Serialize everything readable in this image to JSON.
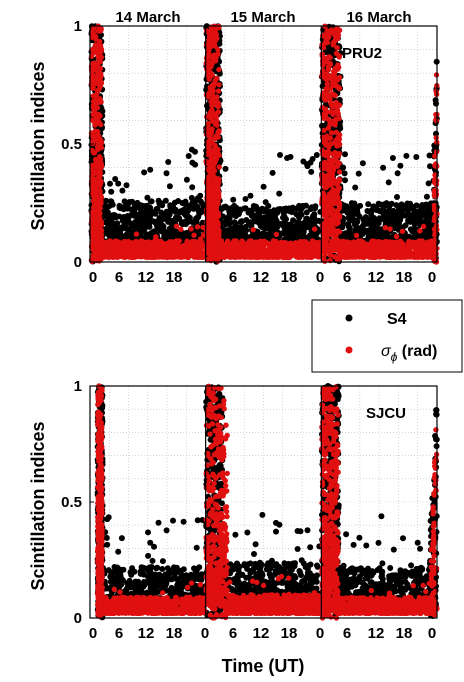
{
  "chart_data": [
    {
      "type": "scatter",
      "panel": "PRU2",
      "station_label": "PRU2",
      "ylabel": "Scintillation indices",
      "ylim": [
        0,
        1
      ],
      "yticks": [
        "0",
        "0.5",
        "1"
      ],
      "day_titles": [
        "14 March",
        "15 March",
        "16 March"
      ],
      "xticks": [
        "0",
        "6",
        "12",
        "18",
        "0",
        "6",
        "12",
        "18",
        "0",
        "6",
        "12",
        "18",
        "0"
      ],
      "xlim_hours": [
        0,
        72
      ],
      "grid": true,
      "series": [
        {
          "name": "S4",
          "color": "#000000",
          "pattern": [
            {
              "day": 0,
              "burst_start_h": 0.3,
              "burst_end_h": 2.6,
              "burst_peak": 1.0,
              "background": [
                0.08,
                0.26
              ]
            },
            {
              "day": 1,
              "burst_start_h": 0.1,
              "burst_end_h": 3.0,
              "burst_peak": 1.0,
              "background": [
                0.08,
                0.24
              ]
            },
            {
              "day": 2,
              "burst_start_h": 0.1,
              "burst_end_h": 4.0,
              "burst_peak": 1.0,
              "background": [
                0.08,
                0.25
              ]
            },
            {
              "day": 2,
              "late_rise_h": 23.2,
              "late_peak": 1.0
            }
          ]
        },
        {
          "name": "σϕ (rad)",
          "color": "#e01010",
          "pattern": [
            {
              "day": 0,
              "burst_start_h": 0.3,
              "burst_end_h": 2.4,
              "burst_peak": 1.0,
              "background": [
                0.02,
                0.09
              ]
            },
            {
              "day": 1,
              "burst_start_h": 0.1,
              "burst_end_h": 2.8,
              "burst_peak": 1.0,
              "background": [
                0.02,
                0.09
              ]
            },
            {
              "day": 2,
              "burst_start_h": 0.1,
              "burst_end_h": 3.8,
              "burst_peak": 1.0,
              "background": [
                0.02,
                0.09
              ]
            },
            {
              "day": 2,
              "late_rise_h": 23.4,
              "late_peak": 0.95
            }
          ]
        }
      ]
    },
    {
      "type": "scatter",
      "panel": "SJCU",
      "station_label": "SJCU",
      "ylabel": "Scintillation indices",
      "xlabel": "Time (UT)",
      "ylim": [
        0,
        1
      ],
      "yticks": [
        "0",
        "0.5",
        "1"
      ],
      "xticks": [
        "0",
        "6",
        "12",
        "18",
        "0",
        "6",
        "12",
        "18",
        "0",
        "6",
        "12",
        "18",
        "0"
      ],
      "xlim_hours": [
        0,
        72
      ],
      "grid": true,
      "series": [
        {
          "name": "S4",
          "color": "#000000",
          "pattern": [
            {
              "day": 0,
              "burst_start_h": 1.6,
              "burst_end_h": 2.6,
              "burst_peak": 1.0,
              "background": [
                0.05,
                0.22
              ]
            },
            {
              "day": 1,
              "burst_start_h": 0.1,
              "burst_end_h": 3.5,
              "burst_peak": 1.0,
              "background": [
                0.05,
                0.24
              ]
            },
            {
              "day": 2,
              "burst_start_h": 0.1,
              "burst_end_h": 3.6,
              "burst_peak": 1.0,
              "background": [
                0.05,
                0.22
              ]
            },
            {
              "day": 2,
              "late_rise_h": 22.5,
              "late_peak": 1.0
            }
          ]
        },
        {
          "name": "σϕ (rad)",
          "color": "#e01010",
          "pattern": [
            {
              "day": 0,
              "burst_start_h": 1.6,
              "burst_end_h": 2.5,
              "burst_peak": 1.0,
              "background": [
                0.02,
                0.09
              ]
            },
            {
              "day": 1,
              "burst_start_h": 0.1,
              "burst_end_h": 4.5,
              "burst_peak": 1.0,
              "background": [
                0.02,
                0.1
              ]
            },
            {
              "day": 2,
              "burst_start_h": 0.1,
              "burst_end_h": 3.5,
              "burst_peak": 1.0,
              "background": [
                0.02,
                0.09
              ]
            },
            {
              "day": 2,
              "late_rise_h": 22.8,
              "late_peak": 0.95
            }
          ]
        }
      ]
    }
  ],
  "legend": {
    "items": [
      {
        "label": "S4",
        "color": "#000000"
      },
      {
        "sigma": "σ",
        "sub": "ϕ",
        "suffix": " (rad)",
        "color": "#e01010"
      }
    ]
  }
}
